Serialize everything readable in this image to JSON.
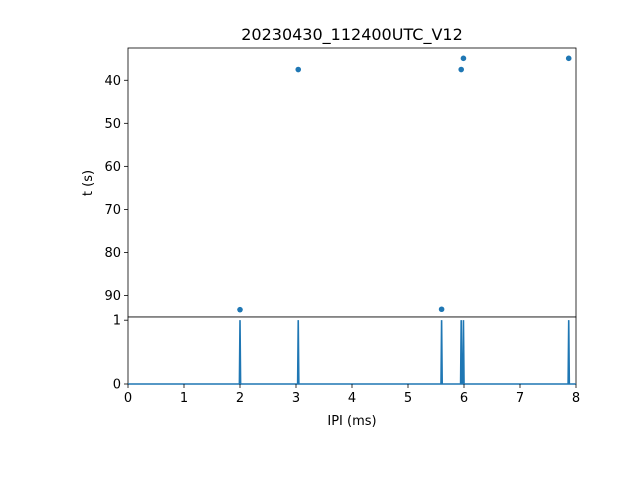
{
  "chart_data": [
    {
      "type": "scatter",
      "title": "20230430_112400UTC_V12",
      "xlabel": "",
      "ylabel": "t (s)",
      "xlim": [
        0,
        8
      ],
      "ylim": [
        95,
        32.5
      ],
      "y_inverted": true,
      "yticks": [
        40,
        50,
        60,
        70,
        80,
        90
      ],
      "color": "#1f77b4",
      "points": [
        {
          "x": 2.0,
          "y": 93.3
        },
        {
          "x": 3.04,
          "y": 37.5
        },
        {
          "x": 5.6,
          "y": 93.2
        },
        {
          "x": 5.95,
          "y": 37.5
        },
        {
          "x": 5.99,
          "y": 34.9
        },
        {
          "x": 7.87,
          "y": 34.9
        }
      ]
    },
    {
      "type": "line",
      "title": "",
      "xlabel": "IPI (ms)",
      "ylabel": "",
      "xlim": [
        0,
        8
      ],
      "ylim": [
        0,
        1.05
      ],
      "xticks": [
        0,
        1,
        2,
        3,
        4,
        5,
        6,
        7,
        8
      ],
      "yticks": [
        0,
        1
      ],
      "color": "#1f77b4",
      "spikes": [
        {
          "x": 2.0,
          "value": 1
        },
        {
          "x": 3.04,
          "value": 1
        },
        {
          "x": 5.6,
          "value": 1
        },
        {
          "x": 5.95,
          "value": 1
        },
        {
          "x": 5.99,
          "value": 1
        },
        {
          "x": 7.87,
          "value": 1
        }
      ]
    }
  ]
}
